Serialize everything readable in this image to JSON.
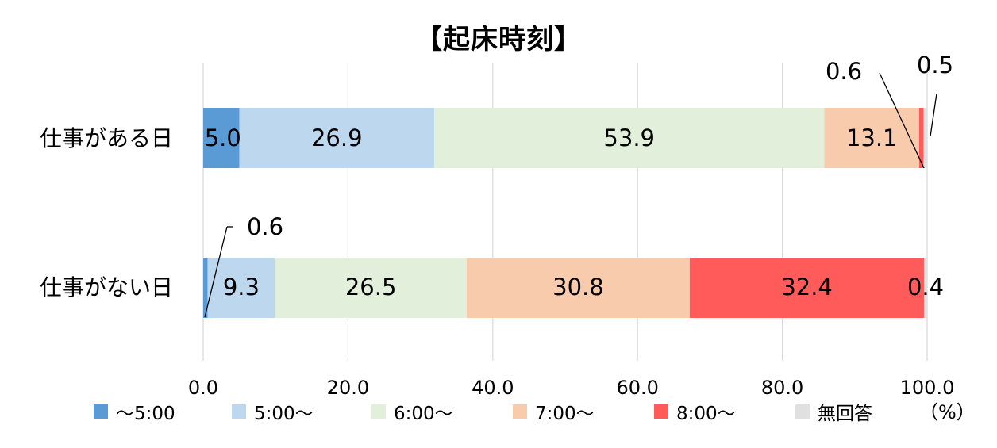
{
  "chart_data": {
    "type": "bar",
    "orientation": "horizontal",
    "stacked": true,
    "title": "【起床時刻】",
    "unit_label": "（%）",
    "categories": [
      "仕事がある日",
      "仕事がない日"
    ],
    "series": [
      {
        "name": "～5:00",
        "color": "#5b9bd5",
        "values": [
          5.0,
          0.6
        ],
        "labels": [
          "5.0",
          "0.6"
        ]
      },
      {
        "name": "5:00～",
        "color": "#bdd7ee",
        "values": [
          26.9,
          9.3
        ],
        "labels": [
          "26.9",
          "9.3"
        ]
      },
      {
        "name": "6:00～",
        "color": "#e2efda",
        "values": [
          53.9,
          26.5
        ],
        "labels": [
          "53.9",
          "26.5"
        ]
      },
      {
        "name": "7:00～",
        "color": "#f8cbad",
        "values": [
          13.1,
          30.8
        ],
        "labels": [
          "13.1",
          "30.8"
        ]
      },
      {
        "name": "8:00～",
        "color": "#ff5b5b",
        "values": [
          0.6,
          32.4
        ],
        "labels": [
          "0.6",
          "32.4"
        ]
      },
      {
        "name": "無回答",
        "color": "#e0e0e0",
        "values": [
          0.5,
          0.4
        ],
        "labels": [
          "0.5",
          "0.4"
        ]
      }
    ],
    "xlim": [
      0,
      100
    ],
    "xticks": [
      "0.0",
      "20.0",
      "40.0",
      "60.0",
      "80.0",
      "100.0"
    ],
    "grid": true,
    "legend_position": "bottom"
  }
}
